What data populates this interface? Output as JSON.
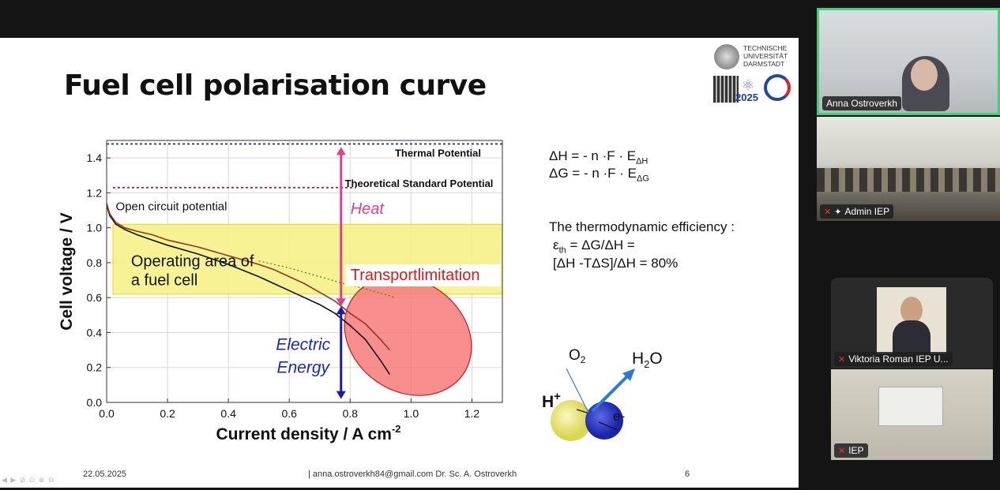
{
  "slide": {
    "title": "Fuel cell polarisation curve",
    "logo_tu": [
      "TECHNISCHE",
      "UNIVERSITÄT",
      "DARMSTADT"
    ],
    "logo_iep_year": "2025",
    "equations": {
      "dh_main": "ΔH = - n ·F · E",
      "dh_sub": "ΔH",
      "dg_main": "ΔG = - n ·F · E",
      "dg_sub": "ΔG",
      "eff_title": "The thermodynamic efficiency :",
      "eps": "ε",
      "eps_sub": "th",
      "eff_line1": " = ΔG/ΔH =",
      "eff_line2": "[ΔH -TΔS]/ΔH = 80%"
    },
    "diagram": {
      "o2": "O",
      "o2_sub": "2",
      "h2o_a": "H",
      "h2o_sub": "2",
      "h2o_b": "O",
      "hplus": "H",
      "hplus_sup": "+",
      "electron": "e-"
    },
    "footer": {
      "date": "22.05.2025",
      "contact": "|  anna.ostroverkh84@gmail.com  Dr. Sc. A. Ostroverkh",
      "page": "6"
    },
    "nav_icons": "◀ ▶ ⊘ ⊙ ⊕ ⊖"
  },
  "chart_data": {
    "type": "line",
    "xlabel_main": "Current density / A cm",
    "xlabel_sup": "-2",
    "ylabel": "Cell voltage / V",
    "xlim": [
      0.0,
      1.3
    ],
    "ylim": [
      0.0,
      1.5
    ],
    "x_ticks": [
      "0.0",
      "0.2",
      "0.4",
      "0.6",
      "0.8",
      "1.0",
      "1.2"
    ],
    "y_ticks": [
      "0.0",
      "0.2",
      "0.4",
      "0.6",
      "0.8",
      "1.0",
      "1.2",
      "1.4"
    ],
    "grid": true,
    "reference_lines": [
      {
        "label": "Thermal Potential",
        "y": 1.48,
        "color": "#2a3a9a"
      },
      {
        "label": "Theoretical Standard Potential",
        "y": 1.23,
        "color": "#a01c28"
      }
    ],
    "annotations": {
      "ocp": "Open circuit potential",
      "operating_line1": "Operating area of",
      "operating_line2": "a fuel cell",
      "heat": "Heat",
      "transport": "Transportlimitation",
      "electric_line1": "Electric",
      "electric_line2": "Energy"
    },
    "operating_band": {
      "y_from": 0.62,
      "y_to": 1.02
    },
    "arrow_x": 0.77,
    "series": [
      {
        "color": "#111111",
        "points": [
          [
            0.0,
            1.13
          ],
          [
            0.01,
            1.07
          ],
          [
            0.03,
            1.02
          ],
          [
            0.06,
            0.99
          ],
          [
            0.1,
            0.96
          ],
          [
            0.15,
            0.93
          ],
          [
            0.2,
            0.9
          ],
          [
            0.3,
            0.85
          ],
          [
            0.4,
            0.79
          ],
          [
            0.5,
            0.72
          ],
          [
            0.55,
            0.68
          ],
          [
            0.6,
            0.64
          ],
          [
            0.65,
            0.6
          ],
          [
            0.7,
            0.56
          ],
          [
            0.75,
            0.51
          ],
          [
            0.8,
            0.44
          ],
          [
            0.85,
            0.36
          ],
          [
            0.9,
            0.24
          ],
          [
            0.93,
            0.16
          ]
        ]
      },
      {
        "color": "#8a3a22",
        "points": [
          [
            0.0,
            1.14
          ],
          [
            0.01,
            1.08
          ],
          [
            0.03,
            1.03
          ],
          [
            0.06,
            1.0
          ],
          [
            0.1,
            0.98
          ],
          [
            0.15,
            0.96
          ],
          [
            0.2,
            0.93
          ],
          [
            0.3,
            0.89
          ],
          [
            0.4,
            0.84
          ],
          [
            0.5,
            0.79
          ],
          [
            0.55,
            0.76
          ],
          [
            0.6,
            0.72
          ],
          [
            0.65,
            0.68
          ],
          [
            0.7,
            0.63
          ],
          [
            0.75,
            0.58
          ],
          [
            0.8,
            0.51
          ],
          [
            0.85,
            0.45
          ],
          [
            0.9,
            0.36
          ],
          [
            0.93,
            0.3
          ]
        ]
      },
      {
        "color": "#4a7a1a",
        "dashed": true,
        "points": [
          [
            0.5,
            0.81
          ],
          [
            0.6,
            0.77
          ],
          [
            0.7,
            0.72
          ],
          [
            0.78,
            0.68
          ],
          [
            0.85,
            0.65
          ],
          [
            0.95,
            0.6
          ]
        ]
      }
    ]
  },
  "participants": [
    {
      "name": "Anna Ostroverkh",
      "active": true,
      "muted": false,
      "pinned": false
    },
    {
      "name": "Admin IEP",
      "active": false,
      "muted": true,
      "pinned": true
    },
    {
      "name": "Viktoria Roman IEP U...",
      "active": false,
      "muted": true,
      "pinned": false
    },
    {
      "name": "IEP",
      "active": false,
      "muted": true,
      "pinned": false
    }
  ],
  "colors": {
    "active_speaker_border": "#3fd07a",
    "heat_text": "#e0408a",
    "transport_text": "#d81a1a",
    "electric_text": "#1a2ab8",
    "operating_band": "#f7f28a"
  }
}
